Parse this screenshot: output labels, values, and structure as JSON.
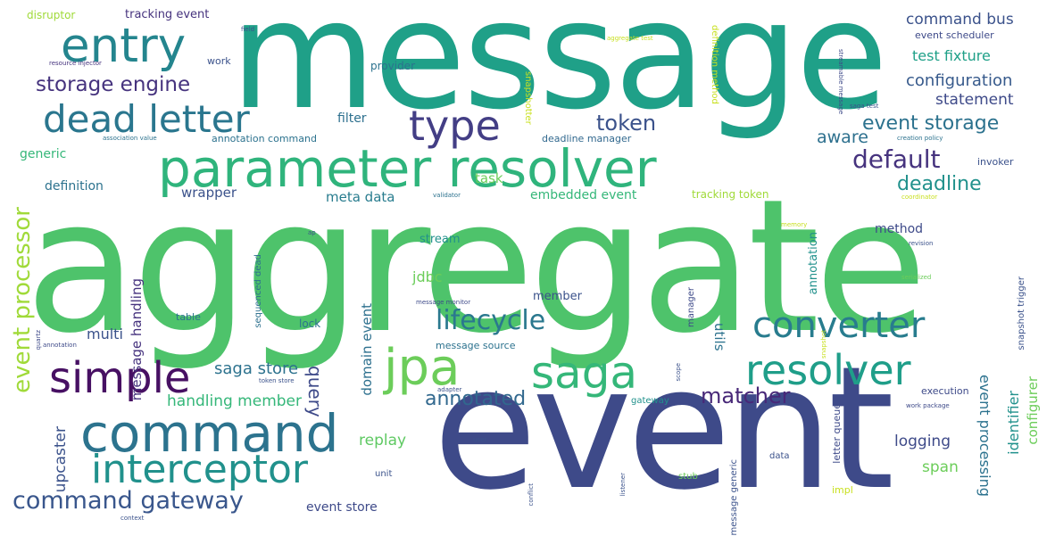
{
  "words": {
    "aggregate": "aggregate",
    "event": "event",
    "message": "message",
    "parameter_resolver": "parameter resolver",
    "entry": "entry",
    "dead_letter": "dead letter",
    "type": "type",
    "storage_engine": "storage engine",
    "command": "command",
    "interceptor": "interceptor",
    "simple": "simple",
    "jpa": "jpa",
    "saga": "saga",
    "resolver": "resolver",
    "converter": "converter",
    "lifecycle": "lifecycle",
    "command_gateway": "command gateway",
    "event_processor": "event processor",
    "token": "token",
    "event_storage": "event storage",
    "default": "default",
    "deadline": "deadline",
    "configuration": "configuration",
    "command_bus": "command bus",
    "test_fixture": "test fixture",
    "statement": "statement",
    "aware": "aware",
    "matcher": "matcher",
    "annotated": "annotated",
    "saga_store": "saga store",
    "handling_member": "handling member",
    "query": "query",
    "replay": "replay",
    "upcaster": "upcaster",
    "logging": "logging",
    "span": "span",
    "event_processing": "event processing",
    "identifier": "identifier",
    "configurer": "configurer",
    "utils": "utils",
    "multi": "multi",
    "message_handling": "message handling",
    "domain_event": "domain event",
    "event_store": "event store",
    "meta_data": "meta data",
    "embedded_event": "embedded event",
    "task": "task",
    "wrapper": "wrapper",
    "definition": "definition",
    "generic": "generic",
    "filter": "filter",
    "stream": "stream",
    "jdbc": "jdbc",
    "member": "member",
    "method": "method",
    "annotation": "annotation",
    "tracking_token": "tracking token",
    "tracking_event": "tracking event",
    "disruptor": "disruptor",
    "work": "work",
    "provider": "provider",
    "annotation_command": "annotation command",
    "deadline_manager": "deadline manager",
    "definition_method": "definition method",
    "snapshotter": "snapshotter",
    "event_scheduler": "event scheduler",
    "invoker": "invoker",
    "creation_policy": "creation policy",
    "saga_test": "saga test",
    "streamable_message": "streamable message",
    "aggregate_test": "aggregate test",
    "resource_injector": "resource injector",
    "field": "field",
    "association_value": "association value",
    "validator": "validator",
    "coordinator": "coordinator",
    "table": "table",
    "lock": "lock",
    "message_source": "message source",
    "message_monitor": "message monitor",
    "sequenced_dead": "sequenced dead",
    "execution": "execution",
    "work_package": "work package",
    "unit": "unit",
    "gateway": "gateway",
    "data": "data",
    "stub": "stub",
    "impl": "impl",
    "letter_queue": "letter queue",
    "snapshot_trigger": "snapshot trigger",
    "serialized": "serialized",
    "revision": "revision",
    "manager": "manager",
    "message_generic": "message generic",
    "adapter": "adapter",
    "token_store": "token store",
    "quartz": "quartz",
    "annotation_small": "annotation",
    "context": "context",
    "conflict": "conflict",
    "listener": "listener",
    "snapshot": "snapshot",
    "memory": "memory",
    "scope": "scope",
    "ap": "ap",
    "user": "user"
  },
  "colors": {
    "dark_purple": "#46337e",
    "indigo": "#433e85",
    "blue": "#365c8d",
    "steel_blue": "#31688e",
    "teal_blue": "#287c8e",
    "teal": "#21918c",
    "sea_green": "#1fa088",
    "green": "#35b779",
    "light_green": "#6ccd5a",
    "lime": "#a0da39",
    "yellow_green": "#c8e020",
    "deep_purple": "#471063",
    "purple": "#482878",
    "navy": "#3b528b"
  }
}
